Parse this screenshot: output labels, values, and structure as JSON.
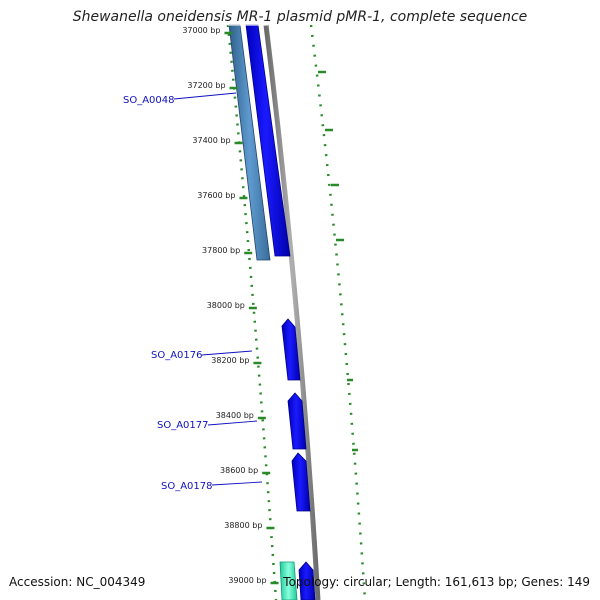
{
  "title": "Shewanella oneidensis MR-1 plasmid pMR-1, complete sequence",
  "accession_text": "Accession: NC_004349",
  "summary_text": "Topology: circular; Length: 161,613 bp; Genes: 149",
  "ticks": [
    {
      "label": "37000 bp",
      "bp": 37000
    },
    {
      "label": "37200 bp",
      "bp": 37200
    },
    {
      "label": "37400 bp",
      "bp": 37400
    },
    {
      "label": "37600 bp",
      "bp": 37600
    },
    {
      "label": "37800 bp",
      "bp": 37800
    },
    {
      "label": "38000 bp",
      "bp": 38000
    },
    {
      "label": "38200 bp",
      "bp": 38200
    },
    {
      "label": "38400 bp",
      "bp": 38400
    },
    {
      "label": "38600 bp",
      "bp": 38600
    },
    {
      "label": "38800 bp",
      "bp": 38800
    },
    {
      "label": "39000 bp",
      "bp": 39000
    }
  ],
  "genes": [
    {
      "label": "SO_A0048"
    },
    {
      "label": "SO_A0176"
    },
    {
      "label": "SO_A0177"
    },
    {
      "label": "SO_A0178"
    }
  ],
  "colors": {
    "forward_cds": "#0000ee",
    "reverse_cds": "#4f86b8",
    "backbone": "#888888",
    "gc_skew": "#2a8a2a",
    "label": "#1010c0",
    "cyan_feature": "#33ddbb"
  }
}
